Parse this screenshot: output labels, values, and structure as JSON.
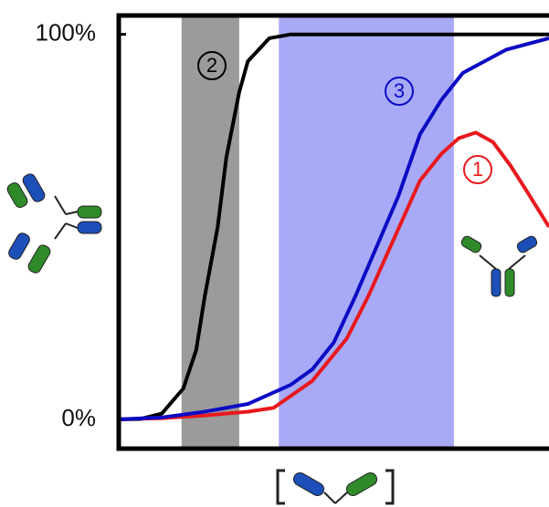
{
  "chart_data": {
    "type": "line",
    "xlim": [
      0,
      100
    ],
    "ylim": [
      -7.6,
      104.9
    ],
    "yticks": [
      {
        "value": 100,
        "label": "100%"
      },
      {
        "value": 0,
        "label": "0%"
      }
    ],
    "bands": [
      {
        "x": [
          14.6,
          28.0
        ],
        "color": "#9b9b9b"
      },
      {
        "x": [
          37.2,
          77.9
        ],
        "color": "#a8aaf8"
      }
    ],
    "series": [
      {
        "name": "1",
        "color": "#e8191d",
        "x": [
          0,
          10,
          20,
          30,
          36,
          45,
          53,
          58,
          62,
          66,
          70,
          75,
          79,
          83,
          87,
          91,
          95,
          100
        ],
        "values": [
          0,
          0.3,
          1,
          2,
          3,
          10,
          21,
          32,
          42,
          52,
          62,
          69,
          73,
          74.5,
          72,
          66,
          59,
          50
        ]
      },
      {
        "name": "2",
        "color": "#000000",
        "x": [
          0,
          5,
          10,
          15,
          18,
          20,
          23,
          25,
          28,
          30,
          35,
          40,
          50,
          60,
          70,
          80,
          90,
          100
        ],
        "values": [
          0,
          0.1,
          1.5,
          8,
          18,
          32,
          50,
          68,
          85,
          93,
          99,
          100,
          100,
          100,
          100,
          100,
          100,
          100
        ]
      },
      {
        "name": "3",
        "color": "#0b0bc4",
        "x": [
          0,
          10,
          20,
          30,
          40,
          45,
          50,
          55,
          60,
          65,
          70,
          75,
          80,
          90,
          100
        ],
        "values": [
          0,
          0.5,
          2,
          4,
          9,
          13,
          20,
          32,
          45,
          58,
          74,
          83,
          90,
          96,
          99
        ]
      }
    ]
  }
}
